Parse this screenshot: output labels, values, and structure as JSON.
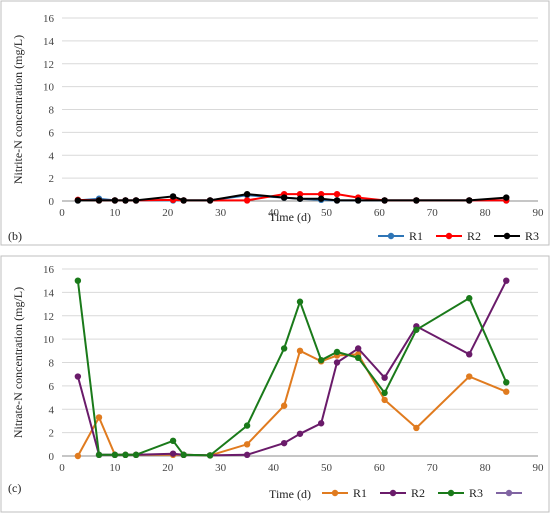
{
  "chart_data": [
    {
      "type": "line",
      "panel_label": "(b)",
      "xlabel": "Time (d)",
      "ylabel": "Nitrite-N concentration (mg/L)",
      "xlim": [
        0,
        90
      ],
      "ylim": [
        0,
        16
      ],
      "xticks": [
        0,
        10,
        20,
        30,
        40,
        50,
        60,
        70,
        80,
        90
      ],
      "yticks": [
        0,
        2,
        4,
        6,
        8,
        10,
        12,
        14,
        16
      ],
      "grid": "horizontal",
      "legend_position": "bottom-right",
      "series": [
        {
          "name": "R1",
          "color": "#2e75b6",
          "x": [
            3,
            7,
            10,
            12,
            14,
            21,
            23,
            28,
            35,
            42,
            45,
            49,
            52,
            56,
            61,
            67,
            77,
            84
          ],
          "y": [
            0.05,
            0.2,
            0.05,
            0.05,
            0.05,
            0.05,
            0.05,
            0.05,
            0.5,
            0.3,
            0.2,
            0.1,
            0.05,
            0.05,
            0.05,
            0.05,
            0.05,
            0.05
          ]
        },
        {
          "name": "R2",
          "color": "#ff0000",
          "x": [
            3,
            7,
            10,
            12,
            14,
            21,
            23,
            28,
            35,
            42,
            45,
            49,
            52,
            56,
            61,
            67,
            77,
            84
          ],
          "y": [
            0.1,
            0.05,
            0.05,
            0.05,
            0.05,
            0.1,
            0.05,
            0.05,
            0.05,
            0.6,
            0.6,
            0.6,
            0.6,
            0.3,
            0.05,
            0.05,
            0.05,
            0.05
          ]
        },
        {
          "name": "R3",
          "color": "#000000",
          "x": [
            3,
            7,
            10,
            12,
            14,
            21,
            23,
            28,
            35,
            42,
            45,
            49,
            52,
            56,
            61,
            67,
            77,
            84
          ],
          "y": [
            0.05,
            0.05,
            0.05,
            0.05,
            0.05,
            0.4,
            0.05,
            0.05,
            0.6,
            0.3,
            0.2,
            0.2,
            0.05,
            0.05,
            0.05,
            0.05,
            0.05,
            0.3
          ]
        }
      ]
    },
    {
      "type": "line",
      "panel_label": "(c)",
      "xlabel": "Time (d)",
      "ylabel": "Nitrate-N concentration (mg/L)",
      "xlim": [
        0,
        90
      ],
      "ylim": [
        0,
        16
      ],
      "xticks": [
        0,
        10,
        20,
        30,
        40,
        50,
        60,
        70,
        80,
        90
      ],
      "yticks": [
        0,
        2,
        4,
        6,
        8,
        10,
        12,
        14,
        16
      ],
      "grid": "horizontal",
      "legend_position": "bottom-right",
      "extra_legend_color": "#8064a2",
      "series": [
        {
          "name": "R1",
          "color": "#e07b1f",
          "x": [
            3,
            7,
            10,
            12,
            14,
            21,
            23,
            28,
            35,
            42,
            45,
            49,
            52,
            56,
            61,
            67,
            77,
            84
          ],
          "y": [
            0.0,
            3.3,
            0.1,
            0.1,
            0.1,
            0.1,
            0.1,
            0.05,
            1.0,
            4.3,
            9.0,
            8.1,
            8.6,
            8.7,
            4.8,
            2.4,
            6.8,
            5.5
          ]
        },
        {
          "name": "R2",
          "color": "#6a1b6a",
          "x": [
            3,
            7,
            10,
            12,
            14,
            21,
            23,
            28,
            35,
            42,
            45,
            49,
            52,
            56,
            61,
            67,
            77,
            84
          ],
          "y": [
            6.8,
            0.1,
            0.1,
            0.1,
            0.1,
            0.2,
            0.1,
            0.05,
            0.1,
            1.1,
            1.9,
            2.8,
            8.0,
            9.2,
            6.7,
            11.1,
            8.7,
            15.0
          ]
        },
        {
          "name": "R3",
          "color": "#1a7a1a",
          "x": [
            3,
            7,
            10,
            12,
            14,
            21,
            23,
            28,
            35,
            42,
            45,
            49,
            52,
            56,
            61,
            67,
            77,
            84
          ],
          "y": [
            15.0,
            0.1,
            0.1,
            0.1,
            0.1,
            1.3,
            0.1,
            0.05,
            2.6,
            9.2,
            13.2,
            8.2,
            8.9,
            8.4,
            5.4,
            10.8,
            13.5,
            6.3
          ]
        }
      ]
    }
  ]
}
